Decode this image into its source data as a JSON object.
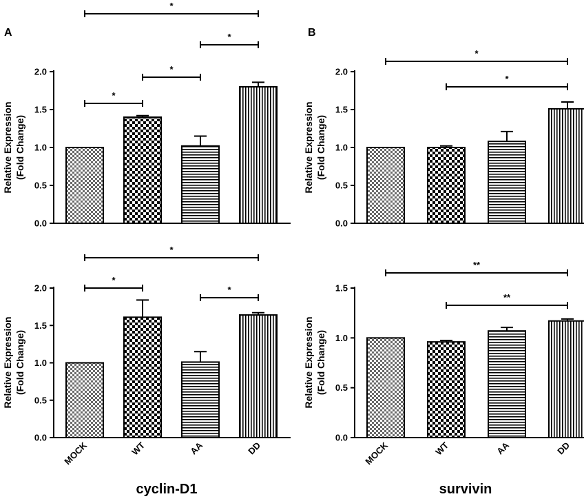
{
  "panel_labels": [
    "A",
    "B"
  ],
  "gene_labels": [
    "cyclin-D1",
    "survivin"
  ],
  "chart_data": [
    {
      "type": "bar",
      "panel": "A",
      "gene": "cyclin-D1",
      "categories": [
        "MOCK",
        "WT",
        "AA",
        "DD"
      ],
      "values": [
        1.0,
        1.4,
        1.02,
        1.8
      ],
      "errors": [
        0.0,
        0.02,
        0.13,
        0.06
      ],
      "ylabel_line1": "Relative Expression",
      "ylabel_line2": "(Fold Change)",
      "ylim": [
        0,
        2.0
      ],
      "yticks": [
        "0.0",
        "0.5",
        "1.0",
        "1.5",
        "2.0"
      ],
      "significance": [
        {
          "from": "MOCK",
          "to": "WT",
          "label": "*"
        },
        {
          "from": "WT",
          "to": "AA",
          "label": "*"
        },
        {
          "from": "AA",
          "to": "DD",
          "label": "*"
        },
        {
          "from": "MOCK",
          "to": "DD",
          "label": "*"
        }
      ]
    },
    {
      "type": "bar",
      "panel": "B",
      "gene": "survivin",
      "categories": [
        "MOCK",
        "WT",
        "AA",
        "DD"
      ],
      "values": [
        1.0,
        1.0,
        1.08,
        1.51
      ],
      "errors": [
        0.0,
        0.02,
        0.13,
        0.09
      ],
      "ylabel_line1": "Relative Expression",
      "ylabel_line2": "(Fold Change)",
      "ylim": [
        0,
        2.0
      ],
      "yticks": [
        "0.0",
        "0.5",
        "1.0",
        "1.5",
        "2.0"
      ],
      "significance": [
        {
          "from": "WT",
          "to": "DD",
          "label": "*"
        },
        {
          "from": "MOCK",
          "to": "DD",
          "label": "*"
        }
      ]
    },
    {
      "type": "bar",
      "panel": "A",
      "gene": "cyclin-D1",
      "categories": [
        "MOCK",
        "WT",
        "AA",
        "DD"
      ],
      "values": [
        1.0,
        1.61,
        1.01,
        1.64
      ],
      "errors": [
        0.0,
        0.23,
        0.14,
        0.03
      ],
      "ylabel_line1": "Relative Expression",
      "ylabel_line2": "(Fold Change)",
      "ylim": [
        0,
        2.0
      ],
      "yticks": [
        "0.0",
        "0.5",
        "1.0",
        "1.5",
        "2.0"
      ],
      "significance": [
        {
          "from": "MOCK",
          "to": "WT",
          "label": "*"
        },
        {
          "from": "AA",
          "to": "DD",
          "label": "*"
        },
        {
          "from": "MOCK",
          "to": "DD",
          "label": "*"
        }
      ]
    },
    {
      "type": "bar",
      "panel": "B",
      "gene": "survivin",
      "categories": [
        "MOCK",
        "WT",
        "AA",
        "DD"
      ],
      "values": [
        1.0,
        0.96,
        1.07,
        1.17
      ],
      "errors": [
        0.0,
        0.015,
        0.035,
        0.02
      ],
      "ylabel_line1": "Relative Expression",
      "ylabel_line2": "(Fold Change)",
      "ylim": [
        0,
        1.5
      ],
      "yticks": [
        "0.0",
        "0.5",
        "1.0",
        "1.5"
      ],
      "significance": [
        {
          "from": "WT",
          "to": "DD",
          "label": "**"
        },
        {
          "from": "MOCK",
          "to": "DD",
          "label": "**"
        }
      ]
    }
  ]
}
